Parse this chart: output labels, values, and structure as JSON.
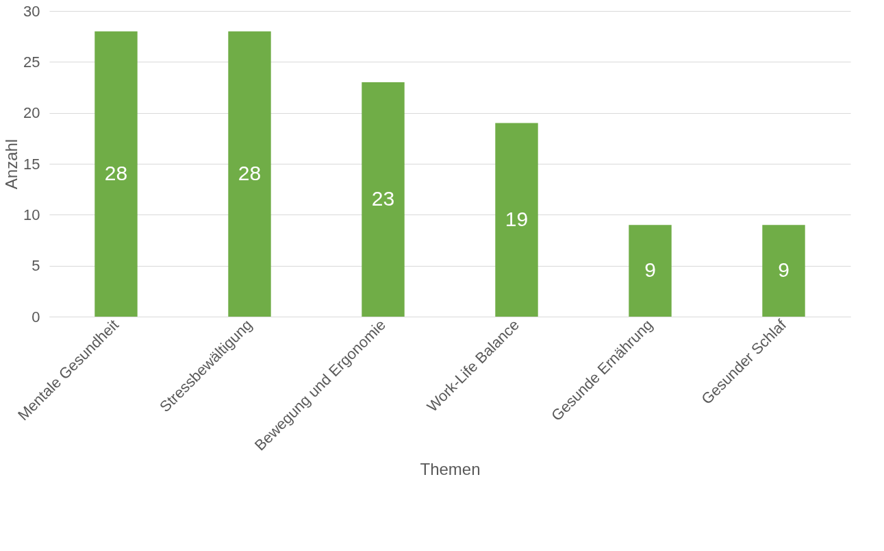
{
  "chart_data": {
    "type": "bar",
    "xlabel": "Themen",
    "ylabel": "Anzahl",
    "categories": [
      "Mentale Gesundheit",
      "Stressbewältigung",
      "Bewegung und Ergonomie",
      "Work-Life Balance",
      "Gesunde Ernährung",
      "Gesunder Schlaf"
    ],
    "values": [
      28,
      28,
      23,
      19,
      9,
      9
    ],
    "color": "#70ad47",
    "ylim": [
      0,
      30
    ],
    "yticks": [
      0,
      5,
      10,
      15,
      20,
      25,
      30
    ],
    "grid": "y",
    "data_labels": true
  }
}
